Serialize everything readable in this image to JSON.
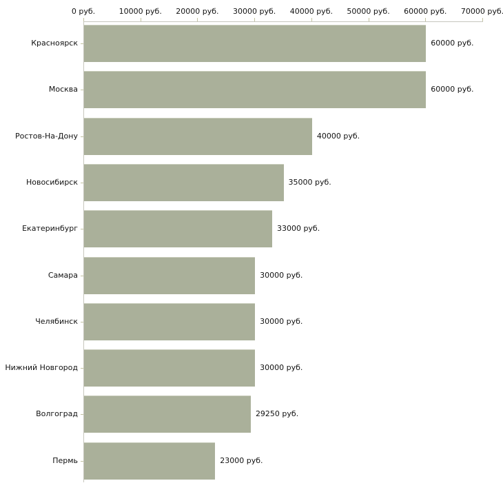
{
  "chart_data": {
    "type": "bar",
    "orientation": "horizontal",
    "title": "",
    "xlabel": "",
    "ylabel": "",
    "unit": "руб.",
    "categories": [
      "Красноярск",
      "Москва",
      "Ростов-На-Дону",
      "Новосибирск",
      "Екатеринбург",
      "Самара",
      "Челябинск",
      "Нижний Новгород",
      "Волгоград",
      "Пермь"
    ],
    "values": [
      60000,
      60000,
      40000,
      35000,
      33000,
      30000,
      30000,
      30000,
      29250,
      23000
    ],
    "value_labels": [
      "60000 руб.",
      "60000 руб.",
      "40000 руб.",
      "35000 руб.",
      "33000 руб.",
      "30000 руб.",
      "30000 руб.",
      "30000 руб.",
      "29250 руб.",
      "23000 руб."
    ],
    "x_axis_position": "top",
    "x_ticks": [
      0,
      10000,
      20000,
      30000,
      40000,
      50000,
      60000,
      70000
    ],
    "x_tick_labels": [
      "0 руб.",
      "10000 руб.",
      "20000 руб.",
      "30000 руб.",
      "40000 руб.",
      "50000 руб.",
      "60000 руб.",
      "70000 руб."
    ],
    "xlim": [
      0,
      70000
    ],
    "grid": false,
    "legend": false,
    "colors": {
      "bar_fill": "#aab09a",
      "axis_line": "#c6c6bd",
      "tick_mark": "#c2c2a0",
      "text": "#111111",
      "background": "#ffffff"
    }
  }
}
